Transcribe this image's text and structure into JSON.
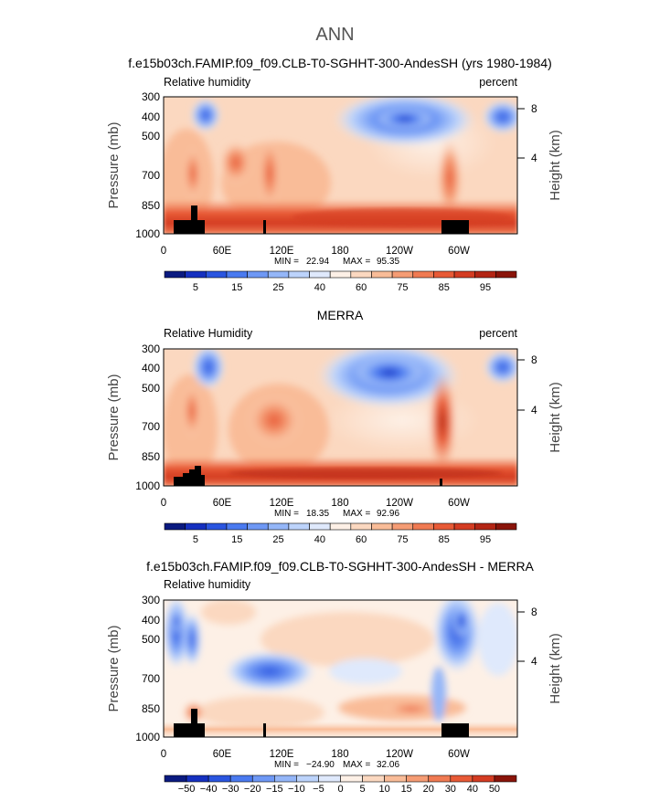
{
  "page": {
    "title": "ANN"
  },
  "chart_data": [
    {
      "type": "heatmap",
      "title": "f.e15b03ch.FAMIP.f09_f09.CLB-T0-SGHHT-300-AndesSH (yrs 1980-1984)",
      "left_label": "Relative humidity",
      "right_label": "percent",
      "ylabel": "Pressure (mb)",
      "y2label": "Height (km)",
      "xticks": [
        "0",
        "60E",
        "120E",
        "180",
        "120W",
        "60W"
      ],
      "yticks": [
        "300",
        "400",
        "500",
        "700",
        "850",
        "1000"
      ],
      "y2ticks": [
        "8",
        "4"
      ],
      "ylim": [
        1000,
        300
      ],
      "xlim": [
        0,
        360
      ],
      "min": 22.94,
      "max": 95.35,
      "min_label": "MIN =",
      "max_label": "MAX =",
      "stats_min": "22.94",
      "stats_max": "95.35",
      "colorbar_labels": [
        "5",
        "15",
        "25",
        "40",
        "60",
        "75",
        "85",
        "95"
      ],
      "colorbar_colors": [
        "#0a1a80",
        "#1530c0",
        "#2a55e0",
        "#4a7af0",
        "#6e98f5",
        "#94b6f8",
        "#bcd3fb",
        "#dfe9fc",
        "#fdf0e6",
        "#fbd8c0",
        "#f9bc98",
        "#f59c74",
        "#f07a52",
        "#e85a36",
        "#d43c22",
        "#b32514",
        "#8a140a"
      ]
    },
    {
      "type": "heatmap",
      "title": "MERRA",
      "left_label": "Relative Humidity",
      "right_label": "percent",
      "ylabel": "Pressure (mb)",
      "y2label": "Height (km)",
      "xticks": [
        "0",
        "60E",
        "120E",
        "180",
        "120W",
        "60W"
      ],
      "yticks": [
        "300",
        "400",
        "500",
        "700",
        "850",
        "1000"
      ],
      "y2ticks": [
        "8",
        "4"
      ],
      "ylim": [
        1000,
        300
      ],
      "xlim": [
        0,
        360
      ],
      "min": 18.35,
      "max": 92.96,
      "min_label": "MIN =",
      "max_label": "MAX =",
      "stats_min": "18.35",
      "stats_max": "92.96",
      "colorbar_labels": [
        "5",
        "15",
        "25",
        "40",
        "60",
        "75",
        "85",
        "95"
      ],
      "colorbar_colors": [
        "#0a1a80",
        "#1530c0",
        "#2a55e0",
        "#4a7af0",
        "#6e98f5",
        "#94b6f8",
        "#bcd3fb",
        "#dfe9fc",
        "#fdf0e6",
        "#fbd8c0",
        "#f9bc98",
        "#f59c74",
        "#f07a52",
        "#e85a36",
        "#d43c22",
        "#b32514",
        "#8a140a"
      ]
    },
    {
      "type": "heatmap",
      "title": "f.e15b03ch.FAMIP.f09_f09.CLB-T0-SGHHT-300-AndesSH - MERRA",
      "left_label": "Relative humidity",
      "right_label": "",
      "ylabel": "Pressure (mb)",
      "y2label": "Height (km)",
      "xticks": [
        "0",
        "60E",
        "120E",
        "180",
        "120W",
        "60W"
      ],
      "yticks": [
        "300",
        "400",
        "500",
        "700",
        "850",
        "1000"
      ],
      "y2ticks": [
        "8",
        "4"
      ],
      "ylim": [
        1000,
        300
      ],
      "xlim": [
        0,
        360
      ],
      "min": -24.9,
      "max": 32.06,
      "min_label": "MIN =",
      "max_label": "MAX =",
      "stats_min": "−24.90",
      "stats_max": "32.06",
      "colorbar_labels": [
        "−50",
        "−40",
        "−30",
        "−20",
        "−15",
        "−10",
        "−5",
        "0",
        "5",
        "10",
        "15",
        "20",
        "30",
        "40",
        "50"
      ],
      "colorbar_colors": [
        "#0a1a80",
        "#1530c0",
        "#2a55e0",
        "#4a7af0",
        "#6e98f5",
        "#94b6f8",
        "#bcd3fb",
        "#dfe9fc",
        "#fdf0e6",
        "#fbd8c0",
        "#f9bc98",
        "#f59c74",
        "#f07a52",
        "#e85a36",
        "#d43c22",
        "#8a140a"
      ]
    }
  ]
}
